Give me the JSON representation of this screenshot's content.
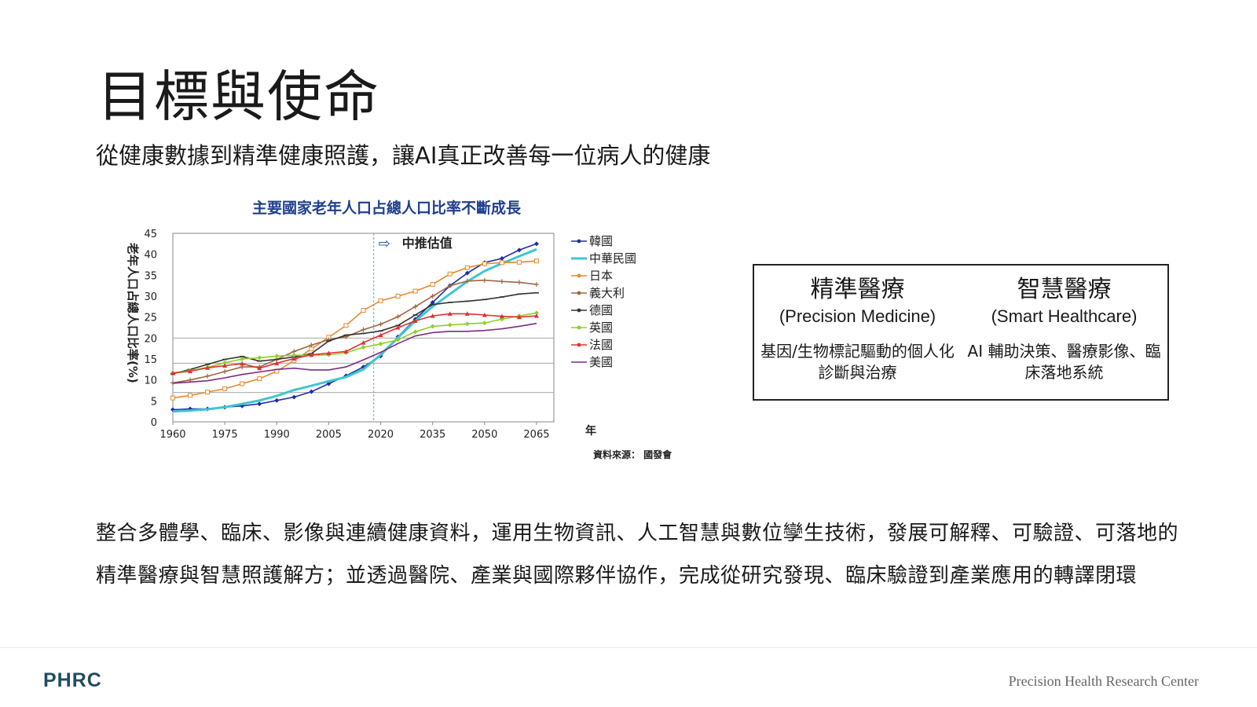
{
  "page": {
    "title": "目標與使命",
    "subtitle": "從健康數據到精準健康照護，讓AI真正改善每一位病人的健康",
    "box": {
      "left": {
        "title": "精準醫療",
        "subtitle": "(Precision Medicine)",
        "desc": "基因/生物標記驅動的個人化診斷與治療"
      },
      "right": {
        "title": "智慧醫療",
        "subtitle": "(Smart Healthcare)",
        "desc": "AI 輔助決策、醫療影像、臨床落地系統"
      }
    },
    "body_text": "整合多體學、臨床、影像與連續健康資料，運用生物資訊、人工智慧與數位孿生技術，發展可解釋、可驗證、可落地的精準醫療與智慧照護解方；並透過醫院、產業與國際夥伴協作，完成從研究發現、臨床驗證到產業應用的轉譯閉環",
    "footer_logo": "PHRC",
    "footer_right": "Precision Health Research Center",
    "colors": {
      "logo": "#1f4e5f",
      "title_chart": "#1f3f8f",
      "footer_right": "#666666"
    }
  },
  "chart_data": {
    "type": "line",
    "title": "主要國家老年人口占總人口比率不斷成長",
    "ylabel": "老年人口占總人口比率(%)",
    "xlabel": "年",
    "annotation": "中推估值",
    "annotation_x": 2018,
    "source": "資料來源： 國發會",
    "xlim": [
      1960,
      2070
    ],
    "ylim": [
      0,
      45
    ],
    "xticks": [
      "1960",
      "1975",
      "1990",
      "2005",
      "2020",
      "2035",
      "2050",
      "2065"
    ],
    "yticks": [
      "0",
      "5",
      "10",
      "15",
      "20",
      "25",
      "30",
      "35",
      "40",
      "45"
    ],
    "hlines": [
      7,
      14,
      20
    ],
    "series": [
      {
        "name": "韓國",
        "color": "#1f2fa8",
        "marker": "diamond",
        "points": [
          [
            1960,
            2.9
          ],
          [
            1965,
            3.1
          ],
          [
            1970,
            3.1
          ],
          [
            1975,
            3.5
          ],
          [
            1980,
            3.8
          ],
          [
            1985,
            4.3
          ],
          [
            1990,
            5.1
          ],
          [
            1995,
            5.9
          ],
          [
            2000,
            7.2
          ],
          [
            2005,
            9.1
          ],
          [
            2010,
            11.0
          ],
          [
            2015,
            13.1
          ],
          [
            2020,
            15.7
          ],
          [
            2025,
            20.3
          ],
          [
            2030,
            24.5
          ],
          [
            2035,
            28.5
          ],
          [
            2040,
            32.5
          ],
          [
            2045,
            35.5
          ],
          [
            2050,
            38.0
          ],
          [
            2055,
            39.0
          ],
          [
            2060,
            41.0
          ],
          [
            2065,
            42.5
          ]
        ]
      },
      {
        "name": "中華民國",
        "color": "#3ec6cf",
        "marker": "none",
        "width": 3,
        "points": [
          [
            1960,
            2.5
          ],
          [
            1965,
            2.7
          ],
          [
            1970,
            3.0
          ],
          [
            1975,
            3.5
          ],
          [
            1980,
            4.3
          ],
          [
            1985,
            5.1
          ],
          [
            1990,
            6.2
          ],
          [
            1995,
            7.6
          ],
          [
            2000,
            8.6
          ],
          [
            2005,
            9.7
          ],
          [
            2010,
            10.7
          ],
          [
            2015,
            12.5
          ],
          [
            2020,
            16.0
          ],
          [
            2025,
            20.1
          ],
          [
            2030,
            24.1
          ],
          [
            2035,
            27.5
          ],
          [
            2040,
            30.5
          ],
          [
            2045,
            33.5
          ],
          [
            2050,
            36.0
          ],
          [
            2055,
            37.8
          ],
          [
            2060,
            39.5
          ],
          [
            2065,
            41.2
          ]
        ]
      },
      {
        "name": "日本",
        "color": "#e8882f",
        "marker": "square",
        "points": [
          [
            1960,
            5.7
          ],
          [
            1965,
            6.3
          ],
          [
            1970,
            7.1
          ],
          [
            1975,
            7.9
          ],
          [
            1980,
            9.1
          ],
          [
            1985,
            10.3
          ],
          [
            1990,
            12.1
          ],
          [
            1995,
            14.6
          ],
          [
            2000,
            17.4
          ],
          [
            2005,
            20.2
          ],
          [
            2010,
            23.0
          ],
          [
            2015,
            26.6
          ],
          [
            2020,
            28.9
          ],
          [
            2025,
            30.0
          ],
          [
            2030,
            31.2
          ],
          [
            2035,
            32.8
          ],
          [
            2040,
            35.3
          ],
          [
            2045,
            36.8
          ],
          [
            2050,
            37.7
          ],
          [
            2055,
            38.0
          ],
          [
            2060,
            38.1
          ],
          [
            2065,
            38.4
          ]
        ]
      },
      {
        "name": "義大利",
        "color": "#a0673f",
        "marker": "plus",
        "points": [
          [
            1960,
            9.3
          ],
          [
            1965,
            10.0
          ],
          [
            1970,
            10.9
          ],
          [
            1975,
            12.0
          ],
          [
            1980,
            13.1
          ],
          [
            1985,
            13.1
          ],
          [
            1990,
            14.9
          ],
          [
            1995,
            16.8
          ],
          [
            2000,
            18.3
          ],
          [
            2005,
            19.6
          ],
          [
            2010,
            20.3
          ],
          [
            2015,
            22.0
          ],
          [
            2020,
            23.3
          ],
          [
            2025,
            25.1
          ],
          [
            2030,
            27.5
          ],
          [
            2035,
            30.0
          ],
          [
            2040,
            32.5
          ],
          [
            2045,
            33.6
          ],
          [
            2050,
            33.8
          ],
          [
            2055,
            33.5
          ],
          [
            2060,
            33.3
          ],
          [
            2065,
            32.8
          ]
        ]
      },
      {
        "name": "德國",
        "color": "#333333",
        "marker": "dash",
        "points": [
          [
            1960,
            11.5
          ],
          [
            1965,
            12.5
          ],
          [
            1970,
            13.7
          ],
          [
            1975,
            14.9
          ],
          [
            1980,
            15.6
          ],
          [
            1985,
            14.5
          ],
          [
            1990,
            14.9
          ],
          [
            1995,
            15.5
          ],
          [
            2000,
            16.3
          ],
          [
            2005,
            19.3
          ],
          [
            2010,
            20.7
          ],
          [
            2015,
            21.1
          ],
          [
            2020,
            21.7
          ],
          [
            2025,
            23.0
          ],
          [
            2030,
            25.5
          ],
          [
            2035,
            28.0
          ],
          [
            2040,
            28.5
          ],
          [
            2045,
            28.8
          ],
          [
            2050,
            29.2
          ],
          [
            2055,
            29.8
          ],
          [
            2060,
            30.5
          ],
          [
            2065,
            30.8
          ]
        ]
      },
      {
        "name": "英國",
        "color": "#8fcf2a",
        "marker": "diamond",
        "points": [
          [
            1960,
            11.7
          ],
          [
            1965,
            12.2
          ],
          [
            1970,
            13.0
          ],
          [
            1975,
            14.1
          ],
          [
            1980,
            15.0
          ],
          [
            1985,
            15.3
          ],
          [
            1990,
            15.7
          ],
          [
            1995,
            15.9
          ],
          [
            2000,
            15.9
          ],
          [
            2005,
            16.0
          ],
          [
            2010,
            16.5
          ],
          [
            2015,
            17.8
          ],
          [
            2020,
            18.6
          ],
          [
            2025,
            19.6
          ],
          [
            2030,
            21.5
          ],
          [
            2035,
            22.8
          ],
          [
            2040,
            23.1
          ],
          [
            2045,
            23.4
          ],
          [
            2050,
            23.6
          ],
          [
            2055,
            24.5
          ],
          [
            2060,
            25.3
          ],
          [
            2065,
            26.0
          ]
        ]
      },
      {
        "name": "法國",
        "color": "#e0302f",
        "marker": "triangle",
        "points": [
          [
            1960,
            11.6
          ],
          [
            1965,
            12.1
          ],
          [
            1970,
            12.9
          ],
          [
            1975,
            13.4
          ],
          [
            1980,
            13.9
          ],
          [
            1985,
            12.8
          ],
          [
            1990,
            14.0
          ],
          [
            1995,
            15.1
          ],
          [
            2000,
            16.0
          ],
          [
            2005,
            16.4
          ],
          [
            2010,
            16.8
          ],
          [
            2015,
            18.9
          ],
          [
            2020,
            20.7
          ],
          [
            2025,
            22.5
          ],
          [
            2030,
            24.1
          ],
          [
            2035,
            25.3
          ],
          [
            2040,
            25.8
          ],
          [
            2045,
            25.8
          ],
          [
            2050,
            25.5
          ],
          [
            2055,
            25.2
          ],
          [
            2060,
            25.0
          ],
          [
            2065,
            25.3
          ]
        ]
      },
      {
        "name": "美國",
        "color": "#7a2a8a",
        "marker": "none",
        "points": [
          [
            1960,
            9.2
          ],
          [
            1965,
            9.5
          ],
          [
            1970,
            9.8
          ],
          [
            1975,
            10.5
          ],
          [
            1980,
            11.3
          ],
          [
            1985,
            11.9
          ],
          [
            1990,
            12.5
          ],
          [
            1995,
            12.8
          ],
          [
            2000,
            12.4
          ],
          [
            2005,
            12.4
          ],
          [
            2010,
            13.1
          ],
          [
            2015,
            14.8
          ],
          [
            2020,
            16.6
          ],
          [
            2025,
            18.7
          ],
          [
            2030,
            20.5
          ],
          [
            2035,
            21.3
          ],
          [
            2040,
            21.6
          ],
          [
            2045,
            21.6
          ],
          [
            2050,
            21.8
          ],
          [
            2055,
            22.2
          ],
          [
            2060,
            22.8
          ],
          [
            2065,
            23.5
          ]
        ]
      }
    ]
  }
}
